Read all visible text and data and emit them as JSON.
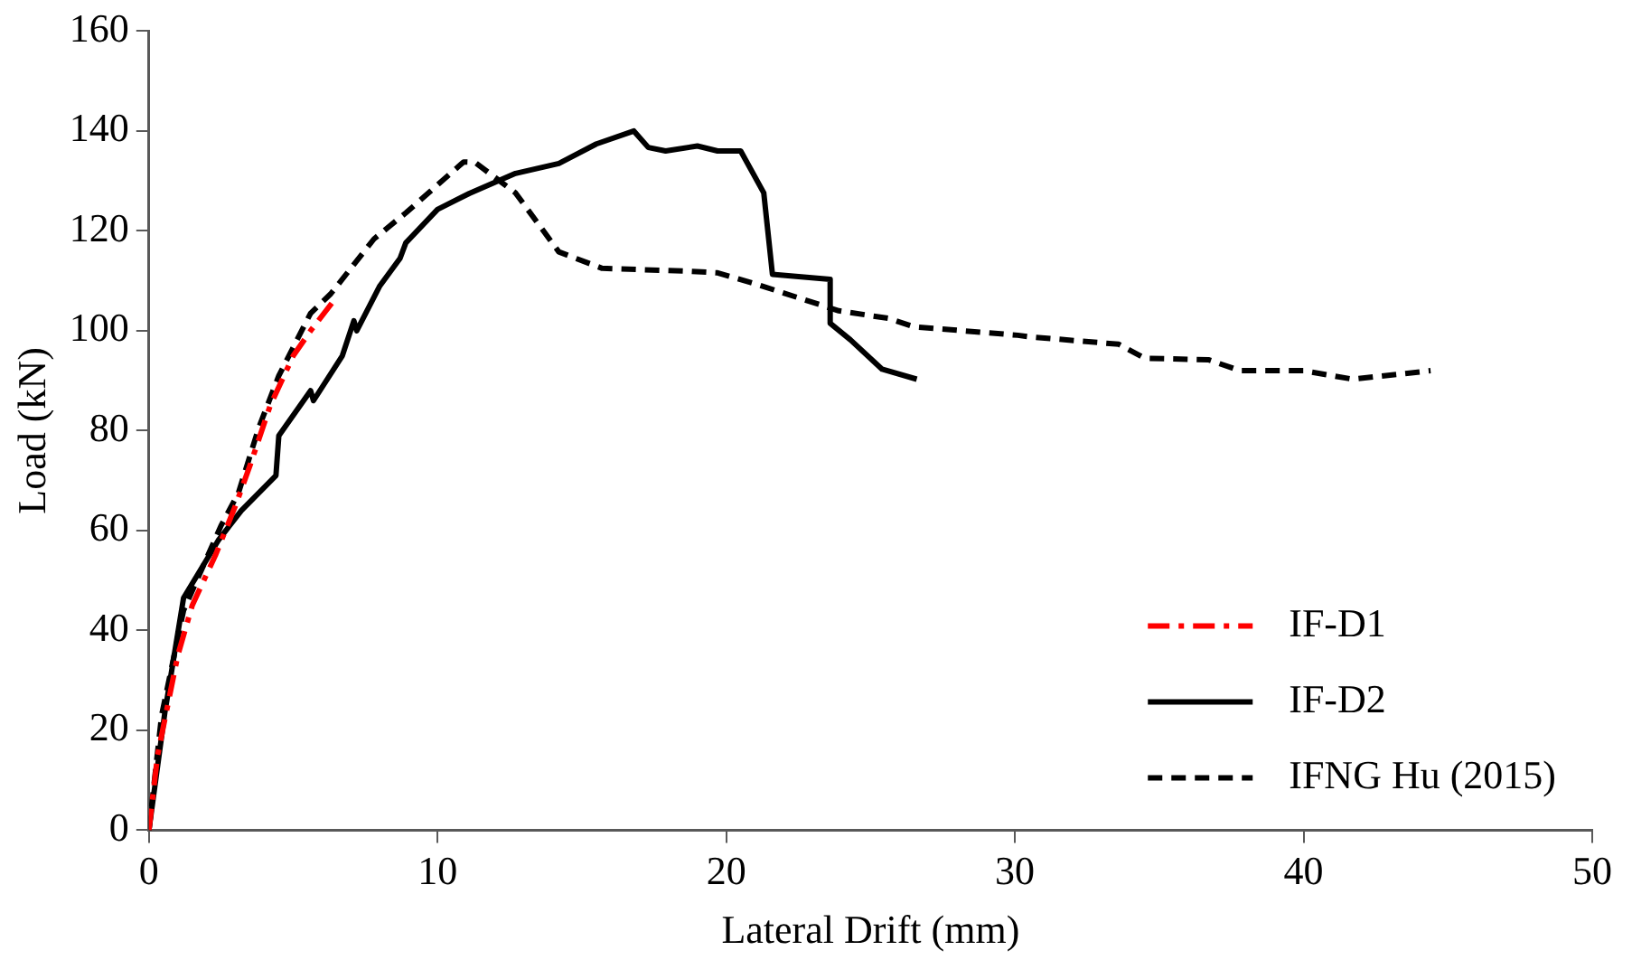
{
  "chart_data": {
    "type": "line",
    "xlabel": "Lateral Drift (mm)",
    "ylabel": "Load (kN)",
    "xlim": [
      0,
      50
    ],
    "xticks": [
      0,
      10,
      20,
      30,
      40,
      50
    ],
    "ylim": [
      0,
      160
    ],
    "yticks": [
      0,
      20,
      40,
      60,
      80,
      100,
      120,
      140,
      160
    ],
    "grid": false,
    "legend": "bottom right",
    "marker": "none",
    "series": [
      {
        "name": "IF-D1",
        "color": "#ff0000",
        "line_style": "dashdot",
        "x": [
          0,
          0.3,
          1,
          1.5,
          2.3,
          3,
          3.5,
          4.2,
          5,
          5.6,
          6.4
        ],
        "values": [
          0,
          15,
          35,
          45,
          55,
          65,
          73,
          85,
          95,
          100,
          106
        ]
      },
      {
        "name": "IF-D2",
        "color": "#000000",
        "line_style": "solid",
        "x": [
          0,
          0.55,
          1.2,
          2.4,
          3.2,
          4.4,
          4.5,
          5.6,
          5.7,
          6.7,
          7.1,
          7.2,
          8,
          8.7,
          8.9,
          10,
          11.1,
          12.7,
          14.2,
          15.5,
          16.8,
          17.3,
          17.9,
          19,
          19.7,
          20.5,
          21.3,
          21.6,
          23.6,
          23.6,
          24.3,
          25.4,
          26.6
        ],
        "values": [
          0,
          23.5,
          46.5,
          58,
          64,
          71,
          79,
          88,
          86,
          95,
          102,
          100,
          109,
          114.5,
          117.6,
          124.3,
          127.5,
          131.5,
          133.5,
          137.4,
          140,
          136.7,
          136,
          137,
          136,
          136,
          127.6,
          111.3,
          110.3,
          101.5,
          98.2,
          92.3,
          90.3
        ]
      },
      {
        "name": "IFNG Hu (2015)",
        "color": "#000000",
        "line_style": "dashed",
        "x": [
          0,
          0.44,
          1.2,
          2.5,
          3.1,
          3.8,
          4.5,
          5.6,
          6.3,
          7.8,
          8.9,
          10.9,
          11.3,
          12.7,
          14.2,
          15.7,
          18.8,
          19.7,
          21,
          23.9,
          25.6,
          26.5,
          30.1,
          30.5,
          33.6,
          34.5,
          36.7,
          37.8,
          40,
          41.7,
          44.4
        ],
        "values": [
          0,
          23,
          44,
          61,
          67.5,
          80.5,
          91,
          103.5,
          107.4,
          118.4,
          123.6,
          133.8,
          133.7,
          127.6,
          115.8,
          112.5,
          111.9,
          111.6,
          109.4,
          104,
          102.5,
          100.8,
          99.1,
          98.8,
          97.3,
          94.5,
          94.2,
          92,
          92,
          90.3,
          92
        ]
      }
    ]
  }
}
